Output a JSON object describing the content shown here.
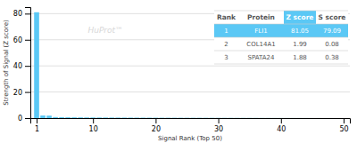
{
  "chart_data": {
    "type": "bar",
    "x": [
      1,
      2,
      3,
      4,
      5,
      6,
      7,
      8,
      9,
      10,
      11,
      12,
      13,
      14,
      15,
      16,
      17,
      18,
      19,
      20,
      21,
      22,
      23,
      24,
      25,
      26,
      27,
      28,
      29,
      30,
      31,
      32,
      33,
      34,
      35,
      36,
      37,
      38,
      39,
      40,
      41,
      42,
      43,
      44,
      45,
      46,
      47,
      48,
      49,
      50
    ],
    "values": [
      81.05,
      1.99,
      1.88,
      0.8,
      0.7,
      0.65,
      0.6,
      0.55,
      0.5,
      0.48,
      0.45,
      0.43,
      0.41,
      0.39,
      0.37,
      0.35,
      0.33,
      0.31,
      0.29,
      0.27,
      0.25,
      0.24,
      0.23,
      0.22,
      0.21,
      0.2,
      0.19,
      0.18,
      0.17,
      0.16,
      0.15,
      0.14,
      0.13,
      0.12,
      0.11,
      0.1,
      0.09,
      0.08,
      0.07,
      0.06,
      0.05,
      0.05,
      0.04,
      0.04,
      0.03,
      0.03,
      0.02,
      0.02,
      0.01,
      0.01
    ],
    "color": "#5bc8f5",
    "xlabel": "Signal Rank (Top 50)",
    "ylabel": "Strength of Signal (Z score)",
    "xlim": [
      0,
      51
    ],
    "xticks": [
      1,
      10,
      20,
      30,
      40,
      50
    ],
    "ylim": [
      0,
      85
    ],
    "yticks": [
      0,
      20,
      40,
      60,
      80
    ],
    "grid": true,
    "annotations": [
      "HuProt™"
    ],
    "table": {
      "header": [
        "Rank",
        "Protein",
        "Z score",
        "S score"
      ],
      "rows": [
        [
          "1",
          "FLI1",
          "81.05",
          "79.09"
        ],
        [
          "2",
          "COL14A1",
          "1.99",
          "0.08"
        ],
        [
          "3",
          "SPATA24",
          "1.88",
          "0.38"
        ]
      ],
      "color": "#5bc8f5"
    }
  }
}
